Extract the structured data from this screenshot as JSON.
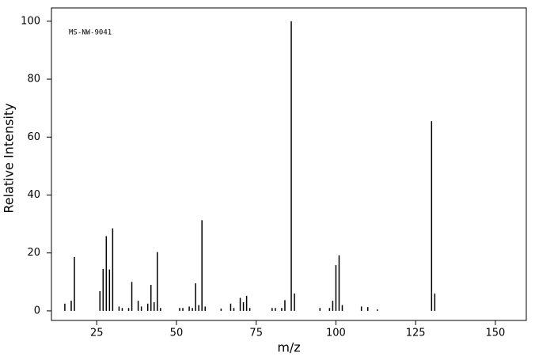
{
  "chart_data": {
    "type": "stem",
    "annotation": "MS-NW-9041",
    "x_label": "m/z",
    "y_label": "Relative Intensity",
    "color": "#000000",
    "x": [
      15,
      17,
      18,
      26,
      27,
      28,
      29,
      30,
      32,
      33,
      35,
      36,
      38,
      39,
      41,
      42,
      43,
      44,
      45,
      51,
      52,
      54,
      55,
      56,
      57,
      58,
      59,
      64,
      67,
      68,
      70,
      71,
      72,
      73,
      80,
      81,
      83,
      84,
      86,
      87,
      95,
      98,
      99,
      100,
      101,
      102,
      108,
      110,
      113,
      130,
      131
    ],
    "values": [
      2.5,
      3.5,
      18.6,
      6.8,
      14.5,
      25.8,
      14.3,
      28.5,
      1.5,
      1,
      1,
      10,
      3.5,
      1.5,
      2.5,
      9,
      3,
      20.3,
      1,
      1,
      1,
      1.5,
      1,
      9.5,
      2,
      31.3,
      1.5,
      0.8,
      2.5,
      1,
      4.5,
      3,
      5.2,
      1,
      1,
      1,
      1,
      3.7,
      100,
      6,
      1,
      1,
      3.5,
      15.8,
      19.2,
      2,
      1.5,
      1.3,
      0.5,
      65.5,
      6
    ],
    "xlim": [
      10.8,
      159.7
    ],
    "ylim": [
      -3.3,
      104.6
    ],
    "xticks": [
      25,
      50,
      75,
      100,
      125,
      150
    ],
    "yticks": [
      0,
      20,
      40,
      60,
      80,
      100
    ]
  }
}
